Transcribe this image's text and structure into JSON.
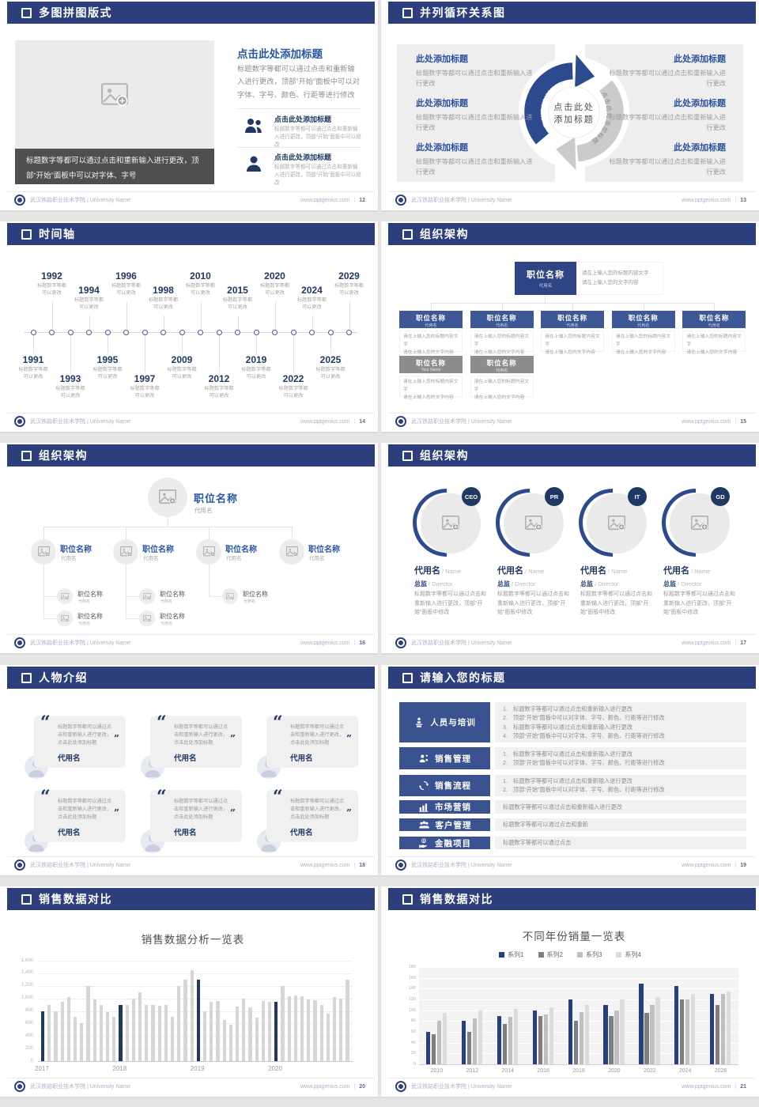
{
  "footer": {
    "org": "武汉铁路职业技术学院 | University Name",
    "site": "www.pptgenius.com",
    "divider": "|"
  },
  "colors": {
    "header_blue": "#2c3e7b",
    "accent_blue": "#2a56a5",
    "navy": "#1f3864",
    "box_blue": "#3d5797",
    "box_gray": "#8c8c8c",
    "panel_gray": "#eeeeee",
    "bar_gray": "#d6d6d6"
  },
  "slides": [
    {
      "id": "multi-image",
      "title": "多图拼图版式",
      "page": "12",
      "caption": "标题数字等都可以通过点击和重新输入进行更改，顶部“开始”面板中可以对字体、字号",
      "heading": "点击此处添加标题",
      "body": "标题数字等都可以通过点击和重新输入进行更改，顶部“开始”面板中可以对字体、字号、颜色、行距等进行修改",
      "items": [
        {
          "icon": "people-icon",
          "heading": "点击此处添加标题",
          "text": "标题数字等都可以通过点击和重新输入进行更改，顶部“开始”面板中可以修改"
        },
        {
          "icon": "person-icon",
          "heading": "点击此处添加标题",
          "text": "标题数字等都可以通过点击和重新输入进行更改，顶部“开始”面板中可以修改"
        }
      ]
    },
    {
      "id": "cycle",
      "title": "并列循环关系图",
      "page": "13",
      "center_line1": "点击此处",
      "center_line2": "添加标题",
      "arrow_label": "点击此处添加标题",
      "left_items": [
        {
          "heading": "此处添加标题",
          "text": "标题数字等都可以通过点击和重新输入进行更改"
        },
        {
          "heading": "此处添加标题",
          "text": "标题数字等都可以通过点击和重新输入进行更改"
        },
        {
          "heading": "此处添加标题",
          "text": "标题数字等都可以通过点击和重新输入进行更改"
        }
      ],
      "right_items": [
        {
          "heading": "此处添加标题",
          "text": "标题数字等都可以通过点击和重新输入进行更改"
        },
        {
          "heading": "此处添加标题",
          "text": "标题数字等都可以通过点击和重新输入进行更改"
        },
        {
          "heading": "此处添加标题",
          "text": "标题数字等都可以通过点击和重新输入进行更改"
        }
      ]
    },
    {
      "id": "timeline",
      "title": "时间轴",
      "page": "14",
      "note_lines": [
        "标题数字等都",
        "可以更改"
      ],
      "years": [
        "1991",
        "1992",
        "1993",
        "1994",
        "1995",
        "1996",
        "1997",
        "1998",
        "2009",
        "2010",
        "2012",
        "2015",
        "2019",
        "2020",
        "2022",
        "2024",
        "2025",
        "2029"
      ]
    },
    {
      "id": "org-boxes",
      "title": "组织架构",
      "page": "15",
      "root": {
        "name": "职位名称",
        "sub": "代用名"
      },
      "line1": "请在上输入您的标题内容文字",
      "line2": "请在上输入您的文字内容",
      "row1": [
        {
          "name": "职位名称",
          "sub": "代用名"
        },
        {
          "name": "职位名称",
          "sub": "代用名"
        },
        {
          "name": "职位名称",
          "sub": "代用名"
        },
        {
          "name": "职位名称",
          "sub": "代用名"
        },
        {
          "name": "职位名称",
          "sub": "代用名"
        }
      ],
      "row2": [
        {
          "name": "职位名称",
          "sub": "Your Name"
        },
        {
          "name": "职位名称",
          "sub": "代用名"
        }
      ]
    },
    {
      "id": "org-photos",
      "title": "组织架构",
      "page": "16",
      "root": {
        "name": "职位名称",
        "sub": "代用名"
      },
      "child": {
        "name": "职位名称",
        "sub": "代用名"
      },
      "nodes": [
        {
          "name": "职位名称",
          "sub": "代用名",
          "children": 2
        },
        {
          "name": "职位名称",
          "sub": "代用名",
          "children": 2
        },
        {
          "name": "职位名称",
          "sub": "代用名",
          "children": 1
        },
        {
          "name": "职位名称",
          "sub": "代用名",
          "children": 0
        }
      ]
    },
    {
      "id": "org-members",
      "title": "组织架构",
      "page": "17",
      "text": "标题数字等都可以通过点击和重新输入进行更改，顶部“开始”面板中修改",
      "members": [
        {
          "badge": "CEO",
          "name": "代用名",
          "name_en": "Name",
          "role": "总监",
          "role_en": "Director"
        },
        {
          "badge": "PR",
          "name": "代用名",
          "name_en": "Name",
          "role": "总监",
          "role_en": "Director"
        },
        {
          "badge": "IT",
          "name": "代用名",
          "name_en": "Name",
          "role": "总监",
          "role_en": "Director"
        },
        {
          "badge": "GD",
          "name": "代用名",
          "name_en": "Name",
          "role": "总监",
          "role_en": "Director"
        }
      ]
    },
    {
      "id": "people-intro",
      "title": "人物介绍",
      "page": "18",
      "card_text": "标题数字等都可以通过点击和重新输入进行更改，点击此处添加标题",
      "card_name": "代用名",
      "card_count": 6
    },
    {
      "id": "title-list",
      "title": "请输入您的标题",
      "page": "19",
      "rows": [
        {
          "icon": "training-icon",
          "label": "人员与培训",
          "numbered": true,
          "lines": [
            "标题数字等都可以通过点击和重新输入进行更改",
            "顶部“开始”面板中可以对字体、字号、颜色、行距等进行修改",
            "标题数字等都可以通过点击和重新输入进行更改",
            "顶部“开始”面板中可以对字体、字号、颜色、行距等进行修改"
          ]
        },
        {
          "icon": "sales-person-icon",
          "label": "销售管理",
          "numbered": true,
          "lines": [
            "标题数字等都可以通过点击和重新输入进行更改",
            "顶部“开始”面板中可以对字体、字号、颜色、行距等进行修改"
          ]
        },
        {
          "icon": "cycle-arrows-icon",
          "label": "销售流程",
          "numbered": true,
          "lines": [
            "标题数字等都可以通过点击和重新输入进行更改",
            "顶部“开始”面板中可以对字体、字号、颜色、行距等进行修改"
          ]
        },
        {
          "icon": "bar-chart-icon",
          "label": "市场营销",
          "numbered": false,
          "lines": [
            "标题数字等都可以通过点击和重新输入进行更改"
          ]
        },
        {
          "icon": "customers-icon",
          "label": "客户管理",
          "numbered": false,
          "lines": [
            "标题数字等都可以通过点击和重新"
          ]
        },
        {
          "icon": "finance-icon",
          "label": "金融项目",
          "numbered": false,
          "lines": [
            "标题数字等都可以通过点击"
          ]
        }
      ]
    },
    {
      "id": "chart-single",
      "title": "销售数据对比",
      "page": "20",
      "chart": 0
    },
    {
      "id": "chart-grouped",
      "title": "销售数据对比",
      "page": "21",
      "chart": 1
    }
  ],
  "chart_data": [
    {
      "type": "bar",
      "title": "销售数据分析一览表",
      "categories": [
        "2017",
        "2018",
        "2019",
        "2020"
      ],
      "groups": [
        [
          800,
          900,
          800,
          950,
          1020,
          700,
          600,
          1200,
          980,
          890,
          780,
          700
        ],
        [
          890,
          900,
          990,
          1090,
          900,
          900,
          880,
          900,
          700,
          1200,
          1300,
          1450
        ],
        [
          1300,
          800,
          950,
          960,
          660,
          580,
          870,
          990,
          860,
          690,
          960,
          940
        ],
        [
          950,
          1200,
          1030,
          1040,
          1030,
          980,
          970,
          900,
          760,
          1020,
          1000,
          1300
        ]
      ],
      "highlight_first_of_group": true,
      "highlight_color": "#1f3864",
      "bar_color": "#d6d6d6",
      "xlabel": "",
      "ylabel": "",
      "ylim": [
        0,
        1600
      ],
      "ytick": 200,
      "grid": true,
      "legend": false
    },
    {
      "type": "bar",
      "title": "不同年份销量一览表",
      "categories": [
        "2010",
        "2012",
        "2014",
        "2016",
        "2018",
        "2020",
        "2022",
        "2024",
        "2026"
      ],
      "series": [
        {
          "name": "系列1",
          "color": "#24407e",
          "values": [
            60,
            80,
            90,
            100,
            120,
            110,
            150,
            145,
            130
          ]
        },
        {
          "name": "系列2",
          "color": "#7f7f7f",
          "values": [
            55,
            60,
            75,
            90,
            80,
            90,
            95,
            120,
            110
          ]
        },
        {
          "name": "系列3",
          "color": "#bfbfbf",
          "values": [
            80,
            85,
            88,
            92,
            97,
            100,
            110,
            120,
            130
          ]
        },
        {
          "name": "系列4",
          "color": "#dcdcdc",
          "values": [
            95,
            100,
            102,
            105,
            110,
            120,
            125,
            130,
            135
          ]
        }
      ],
      "xlabel": "",
      "ylabel": "",
      "ylim": [
        0,
        180
      ],
      "ytick": 20,
      "grid": true,
      "legend": true,
      "legend_position": "top"
    }
  ]
}
